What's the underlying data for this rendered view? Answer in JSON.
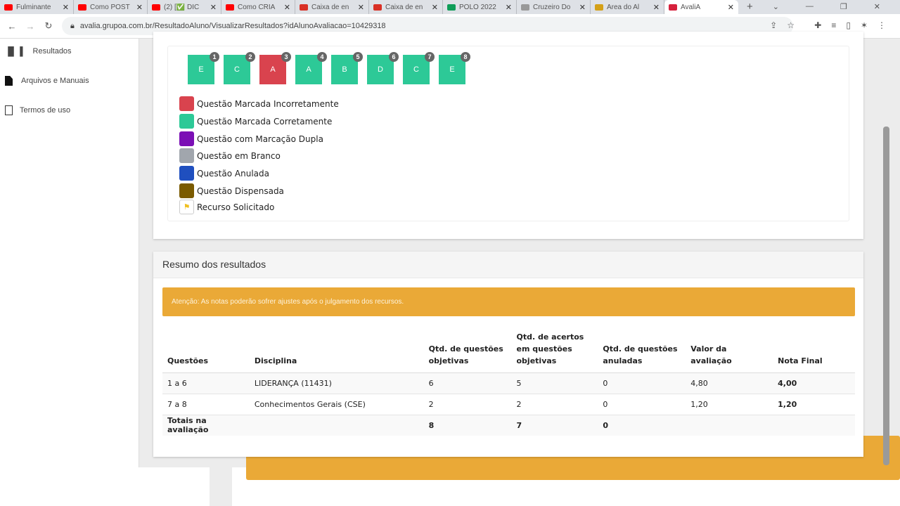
{
  "browser": {
    "tabs": [
      {
        "title": "Fulminante",
        "icon": "youtube-icon",
        "color": "#ff0000"
      },
      {
        "title": "Como POST",
        "icon": "youtube-icon",
        "color": "#ff0000"
      },
      {
        "title": "(2) [✅ DIC",
        "icon": "youtube-icon",
        "color": "#ff0000"
      },
      {
        "title": "Como CRIA",
        "icon": "youtube-icon",
        "color": "#ff0000"
      },
      {
        "title": "Caixa de en",
        "icon": "gmail-icon",
        "color": "#d93025"
      },
      {
        "title": "Caixa de en",
        "icon": "gmail-icon",
        "color": "#d93025"
      },
      {
        "title": "POLO 2022",
        "icon": "sheets-icon",
        "color": "#0f9d58"
      },
      {
        "title": "Cruzeiro Do",
        "icon": "star-icon",
        "color": "#999999"
      },
      {
        "title": "Area do Al",
        "icon": "star-icon",
        "color": "#d4a017"
      },
      {
        "title": "AvaliA",
        "icon": "cross-icon",
        "color": "#d6213d"
      }
    ],
    "url": "avalia.grupoa.com.br/ResultadoAluno/VisualizarResultados?idAlunoAvaliacao=10429318"
  },
  "sidebar": {
    "items": [
      {
        "label": "Resultados",
        "icon": "bar-chart-icon"
      },
      {
        "label": "Arquivos e Manuais",
        "icon": "file-icon"
      },
      {
        "label": "Termos de uso",
        "icon": "document-icon"
      }
    ]
  },
  "answers": [
    {
      "n": "1",
      "a": "E",
      "status": "correct"
    },
    {
      "n": "2",
      "a": "C",
      "status": "correct"
    },
    {
      "n": "3",
      "a": "A",
      "status": "incorrect"
    },
    {
      "n": "4",
      "a": "A",
      "status": "correct"
    },
    {
      "n": "5",
      "a": "B",
      "status": "correct"
    },
    {
      "n": "6",
      "a": "D",
      "status": "correct"
    },
    {
      "n": "7",
      "a": "C",
      "status": "correct"
    },
    {
      "n": "8",
      "a": "E",
      "status": "correct"
    }
  ],
  "colors": {
    "correct": "#2dc997",
    "incorrect": "#d9434e",
    "warning": "#eaa937"
  },
  "legend": [
    {
      "label": "Questão Marcada Incorretamente",
      "color": "#d9434e"
    },
    {
      "label": "Questão Marcada Corretamente",
      "color": "#2dc997"
    },
    {
      "label": "Questão com Marcação Dupla",
      "color": "#7b0fb5"
    },
    {
      "label": "Questão em Branco",
      "color": "#a1a6ad"
    },
    {
      "label": "Questão Anulada",
      "color": "#1f4fbf"
    },
    {
      "label": "Questão Dispensada",
      "color": "#7a5a00"
    },
    {
      "label": "Recurso Solicitado",
      "color": "flag"
    }
  ],
  "summary": {
    "title": "Resumo dos resultados",
    "alert": "Atenção: As notas poderão sofrer ajustes após o julgamento dos recursos.",
    "headers": [
      "Questões",
      "Disciplina",
      "Qtd. de questões objetivas",
      "Qtd. de acertos em questões objetivas",
      "Qtd. de questões anuladas",
      "Valor da avaliação",
      "Nota Final"
    ],
    "rows": [
      [
        "1 a 6",
        "LIDERANÇA (11431)",
        "6",
        "5",
        "0",
        "4,80",
        "4,00"
      ],
      [
        "7 a 8",
        "Conhecimentos Gerais (CSE)",
        "2",
        "2",
        "0",
        "1,20",
        "1,20"
      ]
    ],
    "totals": [
      "Totais na avaliação",
      "",
      "8",
      "7",
      "0",
      "",
      ""
    ]
  }
}
